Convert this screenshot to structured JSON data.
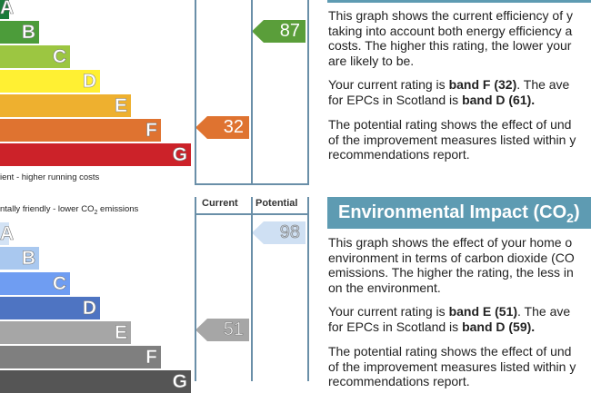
{
  "chart_data": [
    {
      "type": "bar",
      "bands": [
        "A",
        "B",
        "C",
        "D",
        "E",
        "F",
        "G"
      ],
      "band_colors": [
        "#1b7a3b",
        "#4c9c3a",
        "#9cc641",
        "#fff033",
        "#eeb02f",
        "#df7330",
        "#cc2229"
      ],
      "footer_text": "ient - higher running costs",
      "current": {
        "value": 32,
        "band": "F",
        "color": "#df7330"
      },
      "potential": {
        "value": 87,
        "band": "B",
        "color": "#5a9e3a"
      }
    },
    {
      "type": "bar",
      "bands": [
        "A",
        "B",
        "C",
        "D",
        "E",
        "F",
        "G"
      ],
      "band_colors": [
        "#d3e3f5",
        "#a9c8ef",
        "#6f9df2",
        "#4e74c2",
        "#a6a6a6",
        "#7f7f7f",
        "#555555"
      ],
      "header_text_pre": "ntally friendly - lower CO",
      "header_text_sub": "2",
      "header_text_post": " emissions",
      "column_headers": [
        "Current",
        "Potential"
      ],
      "current": {
        "value": 51,
        "band": "E",
        "color": "#a6a6a6"
      },
      "potential": {
        "value": 98,
        "band": "A",
        "color": "#cfe0f3"
      }
    }
  ],
  "energy_text": {
    "p1": [
      "This graph shows the current efficiency of y",
      "taking into account both energy efficiency a",
      "costs. The higher this rating, the lower your",
      "are likely to be."
    ],
    "p2a": "Your current rating is ",
    "p2b": "band F (32)",
    "p2c": ". The ave",
    "p2d": "for EPCs in Scotland is ",
    "p2e": "band D (61).",
    "p3": [
      "The potential rating shows the effect of und",
      "of the improvement measures listed within y",
      "recommendations report."
    ]
  },
  "env_section": {
    "title": "Environmental Impact (CO",
    "title_sub": "2",
    "title_end": ")",
    "p1": [
      "This graph shows the effect of your home o",
      "environment in terms of carbon dioxide (CO",
      "emissions. The higher the rating, the less in",
      "on the environment."
    ],
    "p2a": "Your current rating is ",
    "p2b": "band E (51)",
    "p2c": ". The ave",
    "p2d": "for EPCs in Scotland is ",
    "p2e": "band D (59).",
    "p3": [
      "The potential rating shows the effect of und",
      "of the improvement measures listed within y",
      "recommendations report."
    ]
  }
}
